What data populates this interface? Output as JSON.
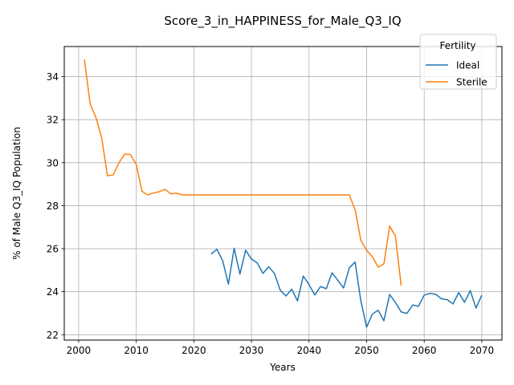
{
  "chart_data": {
    "type": "line",
    "title": "Score_3_in_HAPPINESS_for_Male_Q3_IQ",
    "xlabel": "Years",
    "ylabel": "% of Male Q3_IQ Population",
    "xlim": [
      1997.5,
      2073.5
    ],
    "ylim": [
      21.75,
      35.4
    ],
    "xticks": [
      2000,
      2010,
      2020,
      2030,
      2040,
      2050,
      2060,
      2070
    ],
    "yticks": [
      22,
      24,
      26,
      28,
      30,
      32,
      34
    ],
    "grid": true,
    "legend": {
      "title": "Fertility",
      "placement": "top-right"
    },
    "series": [
      {
        "name": "Ideal",
        "color": "#1f77b4",
        "x": [
          2023,
          2024,
          2025,
          2026,
          2027,
          2028,
          2029,
          2030,
          2031,
          2032,
          2033,
          2034,
          2035,
          2036,
          2037,
          2038,
          2039,
          2040,
          2041,
          2042,
          2043,
          2044,
          2045,
          2046,
          2047,
          2048,
          2049,
          2050,
          2051,
          2052,
          2053,
          2054,
          2055,
          2056,
          2057,
          2058,
          2059,
          2060,
          2061,
          2062,
          2063,
          2064,
          2065,
          2066,
          2067,
          2068,
          2069,
          2070
        ],
        "values": [
          25.75,
          25.97,
          25.45,
          24.35,
          26.02,
          24.82,
          25.93,
          25.52,
          25.34,
          24.85,
          25.16,
          24.85,
          24.07,
          23.8,
          24.12,
          23.57,
          24.73,
          24.33,
          23.85,
          24.24,
          24.14,
          24.88,
          24.53,
          24.17,
          25.11,
          25.38,
          23.57,
          22.35,
          22.96,
          23.14,
          22.65,
          23.87,
          23.5,
          23.06,
          22.99,
          23.38,
          23.32,
          23.84,
          23.92,
          23.88,
          23.67,
          23.63,
          23.43,
          23.96,
          23.51,
          24.05,
          23.24,
          23.84
        ]
      },
      {
        "name": "Sterile",
        "color": "#ff7f0e",
        "x": [
          2001,
          2002,
          2003,
          2004,
          2005,
          2006,
          2007,
          2008,
          2009,
          2010,
          2011,
          2012,
          2013,
          2014,
          2015,
          2016,
          2017,
          2018,
          2019,
          2020,
          2021,
          2022,
          2023,
          2024,
          2025,
          2026,
          2027,
          2028,
          2029,
          2030,
          2031,
          2032,
          2033,
          2034,
          2035,
          2036,
          2037,
          2038,
          2039,
          2040,
          2041,
          2042,
          2043,
          2044,
          2045,
          2046,
          2047,
          2048,
          2049,
          2050,
          2051,
          2052,
          2053,
          2054,
          2055,
          2056
        ],
        "values": [
          34.8,
          32.72,
          32.1,
          31.16,
          29.39,
          29.43,
          30.0,
          30.4,
          30.38,
          29.92,
          28.67,
          28.5,
          28.59,
          28.65,
          28.76,
          28.55,
          28.58,
          28.5,
          28.5,
          28.5,
          28.5,
          28.5,
          28.5,
          28.5,
          28.5,
          28.5,
          28.5,
          28.5,
          28.5,
          28.5,
          28.5,
          28.5,
          28.5,
          28.5,
          28.5,
          28.5,
          28.5,
          28.5,
          28.5,
          28.5,
          28.5,
          28.5,
          28.5,
          28.5,
          28.5,
          28.5,
          28.5,
          27.82,
          26.39,
          25.92,
          25.63,
          25.14,
          25.29,
          27.05,
          26.59,
          24.28
        ]
      }
    ]
  }
}
